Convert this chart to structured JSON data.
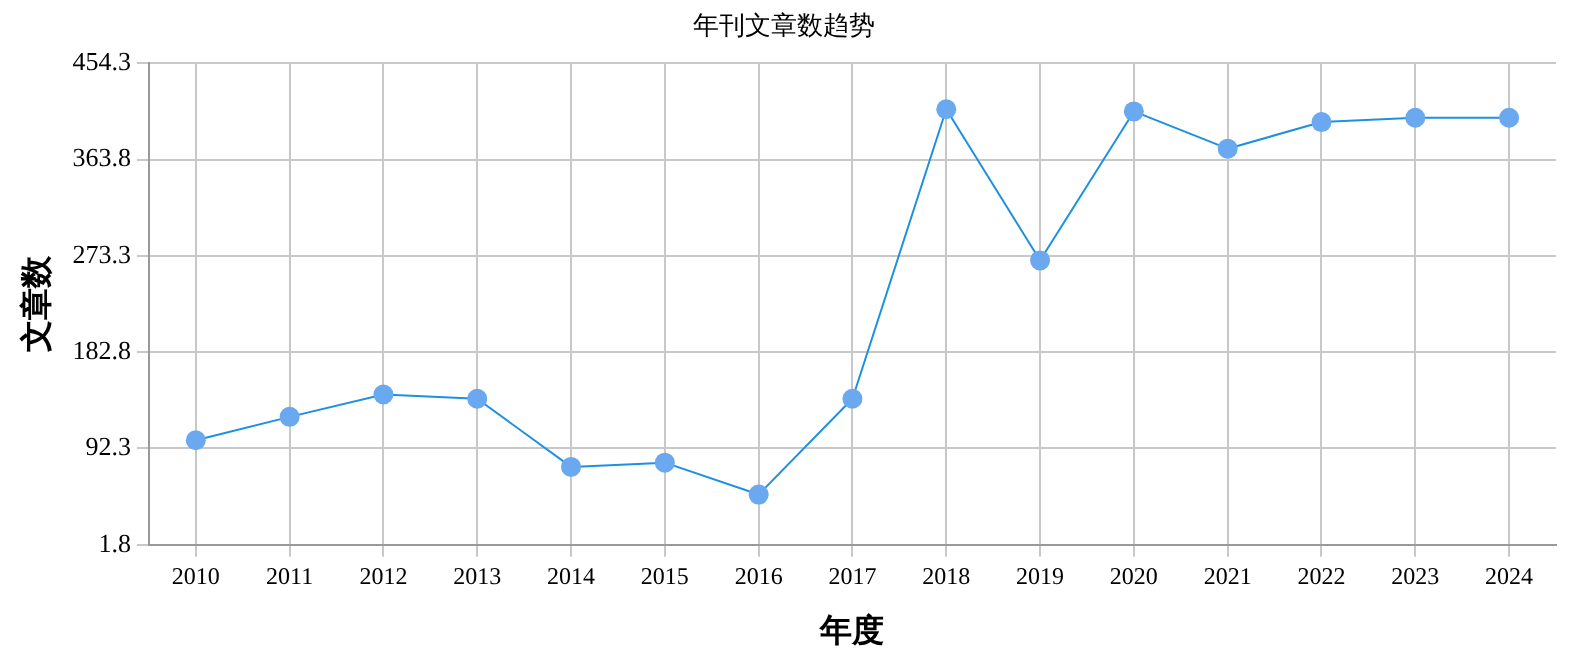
{
  "chart_data": {
    "type": "line",
    "title": "年刊文章数趋势",
    "xlabel": "年度",
    "ylabel": "文章数",
    "categories": [
      "2010",
      "2011",
      "2012",
      "2013",
      "2014",
      "2015",
      "2016",
      "2017",
      "2018",
      "2019",
      "2020",
      "2021",
      "2022",
      "2023",
      "2024"
    ],
    "series": [
      {
        "color": "#1e90e0",
        "values": [
          100,
          122,
          143,
          139,
          75,
          79,
          49,
          139,
          411,
          269,
          409,
          374,
          399,
          403,
          403
        ]
      }
    ],
    "ylim": [
      1.8,
      454.3
    ],
    "yticks": [
      1.8,
      92.3,
      182.8,
      273.3,
      363.8,
      454.3
    ],
    "grid": true,
    "legend": false,
    "marker": "circle",
    "line_style": "solid"
  }
}
